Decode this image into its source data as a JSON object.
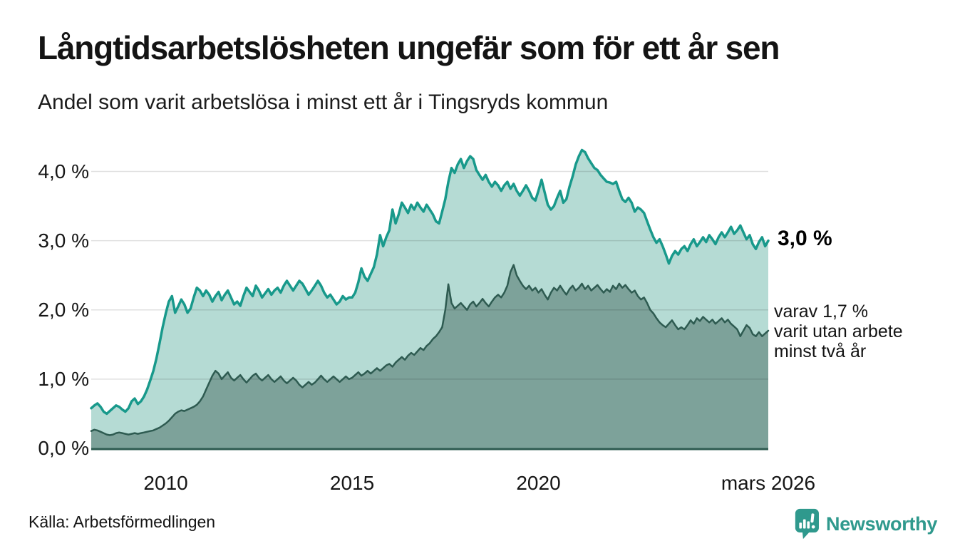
{
  "chart_data": {
    "type": "area",
    "title": "Långtidsarbetslösheten ungefär som för ett år sen",
    "subtitle": "Andel som varit arbetslösa i minst ett år i Tingsryds kommun",
    "x_start": "2008-01",
    "x_end": "2026-03",
    "xlim": [
      2008,
      2026.1667
    ],
    "ylim": [
      0,
      4.5
    ],
    "grid": true,
    "y_ticks": [
      {
        "v": 0,
        "label": "0,0 %"
      },
      {
        "v": 1,
        "label": "1,0 %"
      },
      {
        "v": 2,
        "label": "2,0 %"
      },
      {
        "v": 3,
        "label": "3,0 %"
      },
      {
        "v": 4,
        "label": "4,0 %"
      }
    ],
    "x_ticks": [
      {
        "t": 2010,
        "label": "2010"
      },
      {
        "t": 2015,
        "label": "2015"
      },
      {
        "t": 2020,
        "label": "2020"
      },
      {
        "t": 2026.1667,
        "label": "mars 2026"
      }
    ],
    "series": [
      {
        "name": "minst ett år",
        "color": "#18998b",
        "fill": "#b5dbd4",
        "line_width": 3.5,
        "last_value": 3.0,
        "values": [
          0.58,
          0.62,
          0.65,
          0.6,
          0.53,
          0.5,
          0.54,
          0.58,
          0.62,
          0.6,
          0.56,
          0.53,
          0.58,
          0.68,
          0.72,
          0.64,
          0.68,
          0.75,
          0.85,
          0.98,
          1.12,
          1.3,
          1.52,
          1.75,
          1.95,
          2.12,
          2.2,
          1.96,
          2.05,
          2.15,
          2.08,
          1.96,
          2.02,
          2.18,
          2.32,
          2.28,
          2.2,
          2.28,
          2.22,
          2.12,
          2.2,
          2.26,
          2.14,
          2.22,
          2.28,
          2.18,
          2.08,
          2.12,
          2.06,
          2.2,
          2.32,
          2.26,
          2.2,
          2.35,
          2.28,
          2.18,
          2.24,
          2.3,
          2.22,
          2.28,
          2.32,
          2.25,
          2.35,
          2.42,
          2.35,
          2.28,
          2.35,
          2.42,
          2.38,
          2.3,
          2.22,
          2.28,
          2.35,
          2.42,
          2.35,
          2.25,
          2.18,
          2.22,
          2.15,
          2.08,
          2.12,
          2.2,
          2.15,
          2.18,
          2.18,
          2.25,
          2.4,
          2.6,
          2.48,
          2.42,
          2.52,
          2.62,
          2.8,
          3.08,
          2.92,
          3.05,
          3.15,
          3.45,
          3.25,
          3.38,
          3.55,
          3.48,
          3.4,
          3.52,
          3.45,
          3.55,
          3.48,
          3.42,
          3.52,
          3.45,
          3.38,
          3.28,
          3.25,
          3.42,
          3.6,
          3.85,
          4.05,
          3.98,
          4.1,
          4.18,
          4.05,
          4.15,
          4.22,
          4.18,
          4.02,
          3.95,
          3.88,
          3.95,
          3.85,
          3.78,
          3.85,
          3.8,
          3.72,
          3.8,
          3.85,
          3.75,
          3.82,
          3.72,
          3.65,
          3.72,
          3.8,
          3.72,
          3.62,
          3.58,
          3.72,
          3.88,
          3.7,
          3.52,
          3.45,
          3.5,
          3.62,
          3.72,
          3.55,
          3.6,
          3.78,
          3.93,
          4.1,
          4.22,
          4.31,
          4.28,
          4.19,
          4.12,
          4.05,
          4.02,
          3.95,
          3.9,
          3.85,
          3.84,
          3.82,
          3.85,
          3.72,
          3.6,
          3.56,
          3.62,
          3.55,
          3.42,
          3.48,
          3.45,
          3.4,
          3.28,
          3.16,
          3.05,
          2.97,
          3.02,
          2.92,
          2.8,
          2.67,
          2.78,
          2.85,
          2.8,
          2.88,
          2.92,
          2.85,
          2.95,
          3.02,
          2.92,
          2.98,
          3.05,
          2.98,
          3.08,
          3.02,
          2.95,
          3.05,
          3.12,
          3.05,
          3.12,
          3.2,
          3.1,
          3.15,
          3.22,
          3.12,
          3.02,
          3.08,
          2.95,
          2.88,
          2.98,
          3.05,
          2.92,
          3.0
        ]
      },
      {
        "name": "minst två år",
        "color": "#2e5b51",
        "fill": "#7da29a",
        "line_width": 2.5,
        "last_value": 1.7,
        "values": [
          0.25,
          0.27,
          0.26,
          0.24,
          0.22,
          0.2,
          0.19,
          0.2,
          0.22,
          0.23,
          0.22,
          0.21,
          0.2,
          0.21,
          0.22,
          0.21,
          0.22,
          0.23,
          0.24,
          0.25,
          0.26,
          0.28,
          0.3,
          0.33,
          0.36,
          0.4,
          0.45,
          0.5,
          0.53,
          0.55,
          0.54,
          0.56,
          0.58,
          0.6,
          0.63,
          0.68,
          0.75,
          0.85,
          0.95,
          1.05,
          1.12,
          1.08,
          1.0,
          1.05,
          1.1,
          1.02,
          0.98,
          1.02,
          1.06,
          1.0,
          0.95,
          1.0,
          1.05,
          1.08,
          1.02,
          0.98,
          1.02,
          1.06,
          1.0,
          0.96,
          1.0,
          1.04,
          0.98,
          0.94,
          0.98,
          1.02,
          0.98,
          0.92,
          0.88,
          0.92,
          0.96,
          0.92,
          0.95,
          1.0,
          1.05,
          1.0,
          0.96,
          1.0,
          1.04,
          1.0,
          0.96,
          1.0,
          1.04,
          1.0,
          1.02,
          1.06,
          1.1,
          1.05,
          1.08,
          1.12,
          1.08,
          1.12,
          1.16,
          1.12,
          1.16,
          1.2,
          1.22,
          1.18,
          1.24,
          1.28,
          1.32,
          1.28,
          1.34,
          1.38,
          1.35,
          1.4,
          1.45,
          1.42,
          1.48,
          1.52,
          1.58,
          1.62,
          1.68,
          1.75,
          2.0,
          2.37,
          2.1,
          2.02,
          2.06,
          2.1,
          2.05,
          2.0,
          2.08,
          2.12,
          2.05,
          2.1,
          2.16,
          2.1,
          2.05,
          2.12,
          2.18,
          2.22,
          2.18,
          2.25,
          2.35,
          2.55,
          2.65,
          2.5,
          2.42,
          2.35,
          2.3,
          2.35,
          2.28,
          2.32,
          2.25,
          2.3,
          2.22,
          2.15,
          2.25,
          2.32,
          2.28,
          2.35,
          2.28,
          2.22,
          2.3,
          2.35,
          2.28,
          2.32,
          2.38,
          2.3,
          2.35,
          2.28,
          2.32,
          2.36,
          2.3,
          2.25,
          2.3,
          2.26,
          2.35,
          2.3,
          2.38,
          2.32,
          2.36,
          2.3,
          2.25,
          2.28,
          2.2,
          2.15,
          2.18,
          2.1,
          2.0,
          1.95,
          1.88,
          1.82,
          1.78,
          1.75,
          1.8,
          1.85,
          1.78,
          1.72,
          1.75,
          1.72,
          1.78,
          1.85,
          1.8,
          1.88,
          1.84,
          1.9,
          1.86,
          1.82,
          1.86,
          1.8,
          1.84,
          1.88,
          1.82,
          1.86,
          1.8,
          1.76,
          1.72,
          1.62,
          1.7,
          1.78,
          1.74,
          1.65,
          1.62,
          1.68,
          1.62,
          1.66,
          1.7
        ]
      }
    ],
    "annotations": {
      "last_value_label": "3,0 %",
      "secondary_label_lines": [
        "varav 1,7 %",
        "varit utan arbete",
        "minst två år"
      ]
    },
    "grid_color": "rgba(0,0,0,0.12)",
    "axis_line_color": "#2e5b51"
  },
  "footer": {
    "source": "Källa: Arbetsförmedlingen",
    "brand_name": "Newsworthy",
    "brand_color": "#2f998d"
  }
}
